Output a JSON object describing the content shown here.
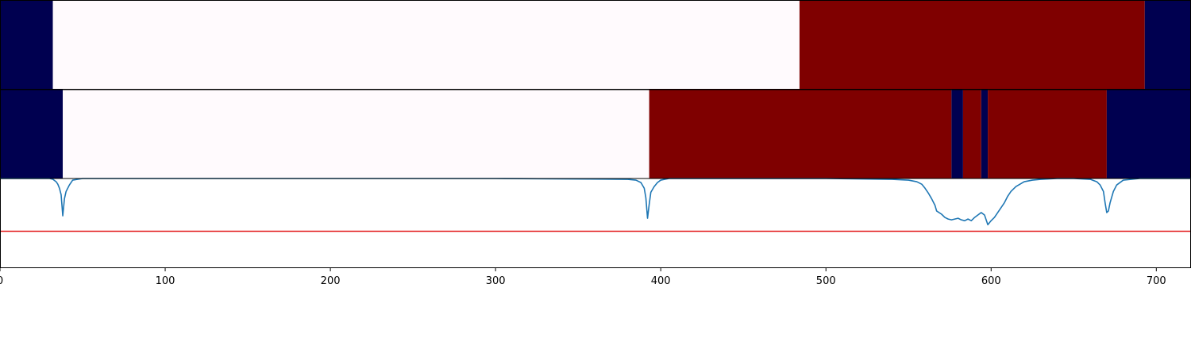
{
  "colors": {
    "low": "#000050",
    "mid": "#fffafd",
    "high": "#7f0000",
    "curve": "#1f77b4",
    "threshold": "#e31a1c",
    "axis": "#000000"
  },
  "chart_data": [
    {
      "type": "heatmap",
      "panel": "top-band",
      "segments": [
        {
          "start": 0,
          "end": 32,
          "level": "low"
        },
        {
          "start": 32,
          "end": 484,
          "level": "mid"
        },
        {
          "start": 484,
          "end": 693,
          "level": "high"
        },
        {
          "start": 693,
          "end": 721,
          "level": "low"
        }
      ]
    },
    {
      "type": "heatmap",
      "panel": "middle-band",
      "segments": [
        {
          "start": 0,
          "end": 38,
          "level": "low"
        },
        {
          "start": 38,
          "end": 393,
          "level": "mid"
        },
        {
          "start": 393,
          "end": 576,
          "level": "high"
        },
        {
          "start": 576,
          "end": 583,
          "level": "low"
        },
        {
          "start": 583,
          "end": 594,
          "level": "high"
        },
        {
          "start": 594,
          "end": 598,
          "level": "low"
        },
        {
          "start": 598,
          "end": 670,
          "level": "high"
        },
        {
          "start": 670,
          "end": 721,
          "level": "low"
        }
      ]
    },
    {
      "type": "line",
      "panel": "bottom-line",
      "xlim": [
        0,
        721
      ],
      "ylim": [
        -0.1,
        1.0
      ],
      "threshold": 0.35,
      "x": [
        0,
        30,
        32,
        34,
        35,
        36,
        37,
        38,
        39,
        40,
        42,
        44,
        50,
        100,
        200,
        300,
        380,
        385,
        388,
        390,
        391,
        392,
        393,
        394,
        396,
        398,
        400,
        405,
        450,
        500,
        540,
        550,
        555,
        558,
        560,
        562,
        564,
        566,
        567,
        570,
        572,
        574,
        576,
        578,
        580,
        582,
        584,
        586,
        588,
        590,
        592,
        594,
        596,
        598,
        600,
        602,
        604,
        606,
        608,
        610,
        612,
        615,
        620,
        625,
        630,
        640,
        650,
        660,
        664,
        666,
        668,
        669,
        670,
        671,
        672,
        674,
        676,
        680,
        690,
        721
      ],
      "y": [
        1.0,
        1.0,
        0.99,
        0.96,
        0.93,
        0.88,
        0.8,
        0.54,
        0.75,
        0.84,
        0.92,
        0.98,
        1.0,
        1.0,
        1.0,
        1.0,
        0.99,
        0.98,
        0.95,
        0.88,
        0.76,
        0.51,
        0.68,
        0.83,
        0.9,
        0.95,
        0.98,
        1.0,
        1.0,
        1.0,
        0.99,
        0.98,
        0.96,
        0.93,
        0.88,
        0.82,
        0.75,
        0.67,
        0.6,
        0.56,
        0.52,
        0.5,
        0.49,
        0.5,
        0.51,
        0.49,
        0.48,
        0.5,
        0.48,
        0.52,
        0.55,
        0.58,
        0.55,
        0.43,
        0.48,
        0.52,
        0.58,
        0.64,
        0.7,
        0.78,
        0.84,
        0.9,
        0.96,
        0.98,
        0.99,
        1.0,
        1.0,
        0.99,
        0.96,
        0.92,
        0.84,
        0.7,
        0.58,
        0.6,
        0.7,
        0.84,
        0.92,
        0.98,
        1.0,
        1.0
      ]
    }
  ],
  "x_axis": {
    "range": [
      0,
      721
    ],
    "ticks": [
      {
        "value": 0,
        "label": "0"
      },
      {
        "value": 100,
        "label": "100"
      },
      {
        "value": 200,
        "label": "200"
      },
      {
        "value": 300,
        "label": "300"
      },
      {
        "value": 400,
        "label": "400"
      },
      {
        "value": 500,
        "label": "500"
      },
      {
        "value": 600,
        "label": "600"
      },
      {
        "value": 700,
        "label": "700"
      }
    ]
  }
}
